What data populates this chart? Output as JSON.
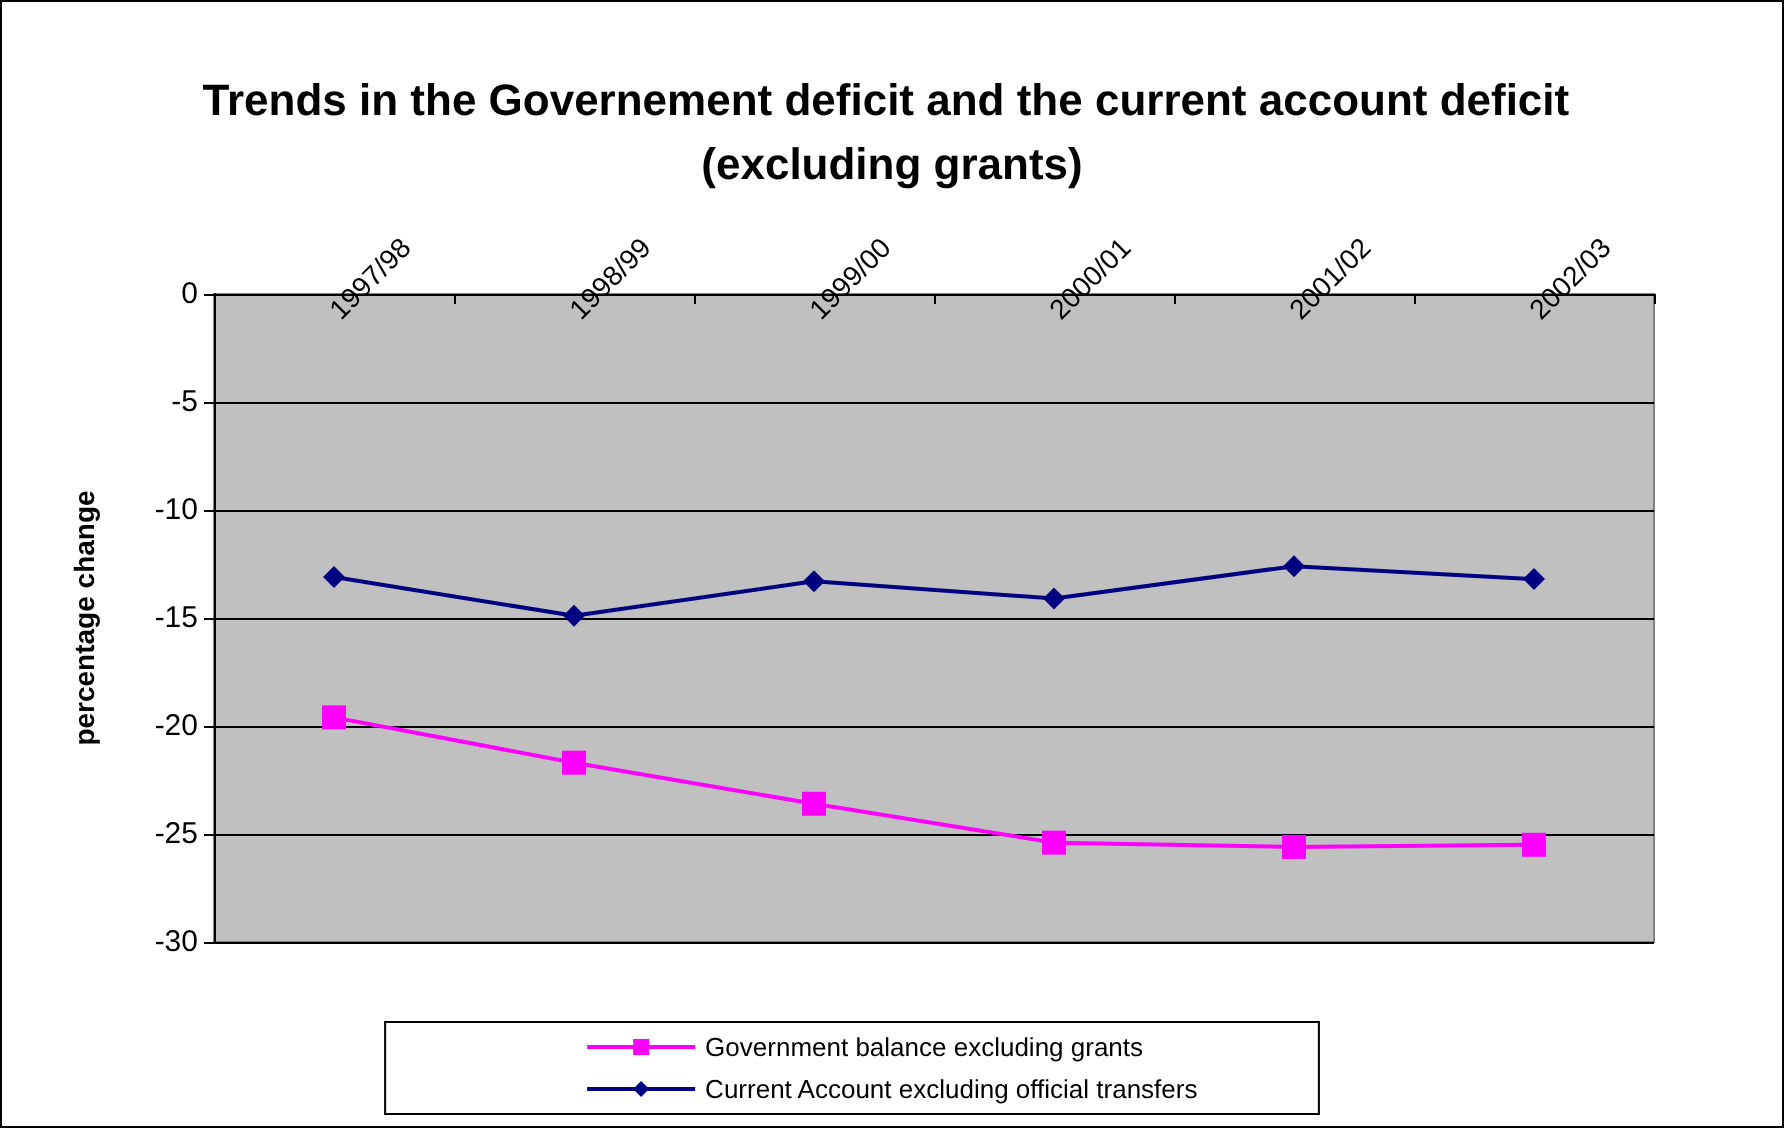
{
  "chart_data": {
    "type": "line",
    "title": "Trends in the Governement deficit and the current account deficit (excluding grants)",
    "ylabel": "percentage change",
    "categories": [
      "1997/98",
      "1998/99",
      "1999/00",
      "2000/01",
      "2001/02",
      "2002/03"
    ],
    "series": [
      {
        "name": "Government balance excluding grants",
        "color": "#ff00ff",
        "marker": "square",
        "values": [
          -19.6,
          -21.7,
          -23.6,
          -25.4,
          -25.6,
          -25.5
        ]
      },
      {
        "name": "Current Account excluding official transfers",
        "color": "#000080",
        "marker": "diamond",
        "values": [
          -13.1,
          -14.9,
          -13.3,
          -14.1,
          -12.6,
          -13.2
        ]
      }
    ],
    "ylim": [
      -30,
      0
    ],
    "yticks": [
      0,
      -5,
      -10,
      -15,
      -20,
      -25,
      -30
    ],
    "grid": "y",
    "legend": "bottom"
  }
}
